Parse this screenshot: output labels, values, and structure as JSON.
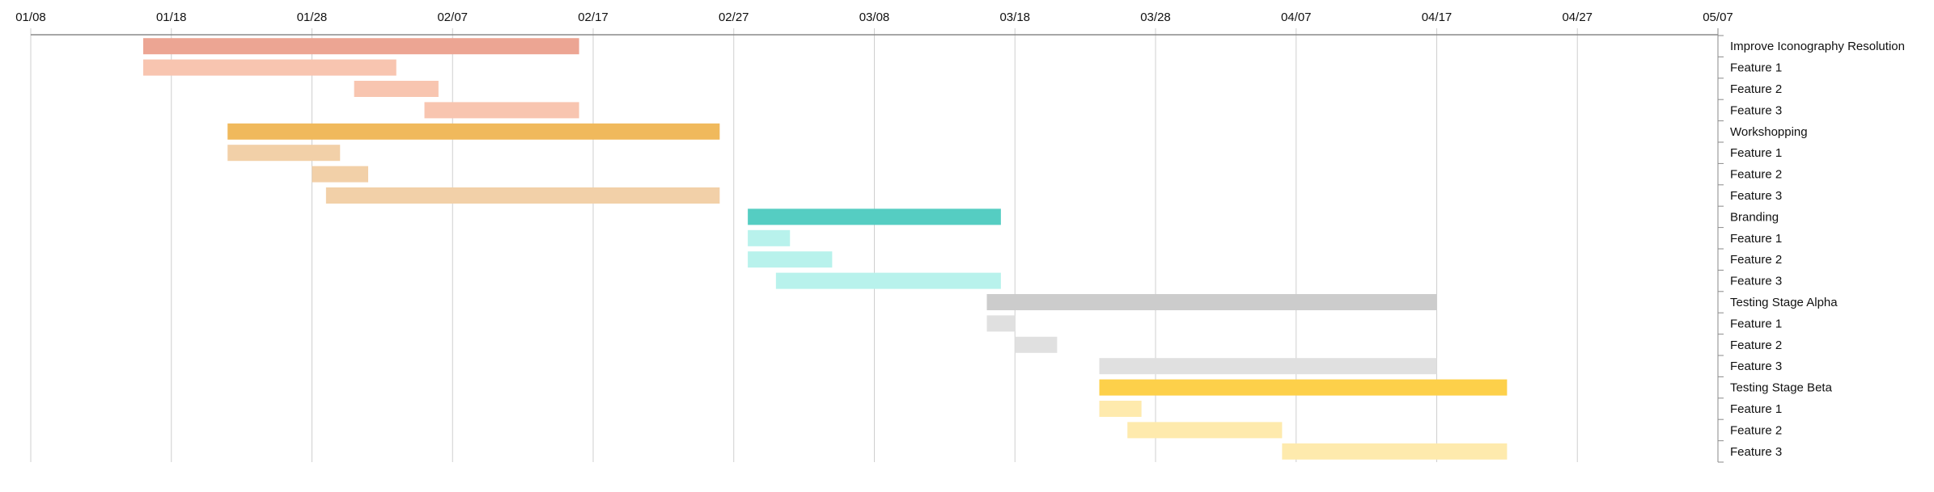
{
  "chart_data": {
    "type": "gantt",
    "title": "",
    "x_ticks": [
      "01/08",
      "01/18",
      "01/28",
      "02/07",
      "02/17",
      "02/27",
      "03/08",
      "03/18",
      "03/28",
      "04/07",
      "04/17",
      "04/27",
      "05/07"
    ],
    "xlim": [
      "01/08",
      "05/07"
    ],
    "grid": true,
    "tasks": [
      {
        "label": "Improve Iconography Resolution",
        "start": "01/16",
        "end": "02/16",
        "color": "#eca593"
      },
      {
        "label": "Feature 1",
        "start": "01/16",
        "end": "02/03",
        "color": "#f8c5b0"
      },
      {
        "label": "Feature 2",
        "start": "01/31",
        "end": "02/06",
        "color": "#f8c5b0"
      },
      {
        "label": "Feature 3",
        "start": "02/05",
        "end": "02/16",
        "color": "#f8c5b0"
      },
      {
        "label": "Workshopping",
        "start": "01/22",
        "end": "02/26",
        "color": "#f0b95c"
      },
      {
        "label": "Feature 1",
        "start": "01/22",
        "end": "01/30",
        "color": "#f2d0a8"
      },
      {
        "label": "Feature 2",
        "start": "01/28",
        "end": "02/01",
        "color": "#f2d0a8"
      },
      {
        "label": "Feature 3",
        "start": "01/29",
        "end": "02/26",
        "color": "#f2d0a8"
      },
      {
        "label": "Branding",
        "start": "02/28",
        "end": "03/17",
        "color": "#55cdc2"
      },
      {
        "label": "Feature 1",
        "start": "02/28",
        "end": "03/02",
        "color": "#b8f2ec"
      },
      {
        "label": "Feature 2",
        "start": "02/28",
        "end": "03/05",
        "color": "#b8f2ec"
      },
      {
        "label": "Feature 3",
        "start": "03/01",
        "end": "03/17",
        "color": "#b8f2ec"
      },
      {
        "label": "Testing Stage Alpha",
        "start": "03/16",
        "end": "04/17",
        "color": "#cccccc"
      },
      {
        "label": "Feature 1",
        "start": "03/16",
        "end": "03/18",
        "color": "#e0e0e0"
      },
      {
        "label": "Feature 2",
        "start": "03/18",
        "end": "03/21",
        "color": "#e0e0e0"
      },
      {
        "label": "Feature 3",
        "start": "03/24",
        "end": "04/17",
        "color": "#e0e0e0"
      },
      {
        "label": "Testing Stage Beta",
        "start": "03/24",
        "end": "04/22",
        "color": "#fdd04a"
      },
      {
        "label": "Feature 1",
        "start": "03/24",
        "end": "03/27",
        "color": "#feeaad"
      },
      {
        "label": "Feature 2",
        "start": "03/26",
        "end": "04/06",
        "color": "#feeaad"
      },
      {
        "label": "Feature 3",
        "start": "04/06",
        "end": "04/22",
        "color": "#feeaad"
      }
    ]
  }
}
